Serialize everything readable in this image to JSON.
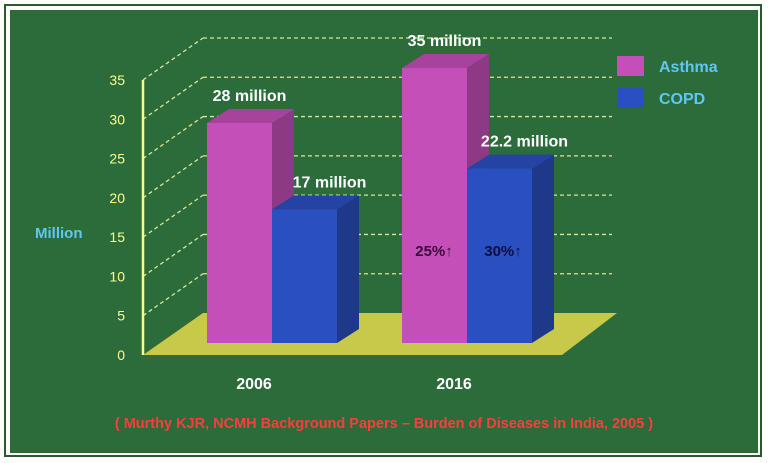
{
  "chart_data": {
    "type": "bar",
    "categories": [
      "2006",
      "2016"
    ],
    "series": [
      {
        "name": "Asthma",
        "values": [
          28,
          35
        ],
        "color": "#c44fb8",
        "data_labels": [
          "28 million",
          "35 million"
        ]
      },
      {
        "name": "COPD",
        "values": [
          17,
          22.2
        ],
        "color": "#2a4fc0",
        "data_labels": [
          "17 million",
          "22.2 million"
        ]
      }
    ],
    "ylabel": "Million",
    "ylim": [
      0,
      35
    ],
    "yticks": [
      0,
      5,
      10,
      15,
      20,
      25,
      30,
      35
    ],
    "grid": true,
    "legend": "top-right",
    "annotations": [
      {
        "category": "2016",
        "series": "Asthma",
        "text": "25%↑"
      },
      {
        "category": "2016",
        "series": "COPD",
        "text": "30%↑"
      }
    ],
    "source": "( Murthy KJR, NCMH Background Papers – Burden of Diseases in India, 2005 )",
    "colors": {
      "background": "#2c6b3a",
      "axis_text": "#ffffff",
      "tick_text": "#ffff88",
      "grid": "#d6e89a",
      "floor": "#c8c84a",
      "ylabel": "#5ec8f0",
      "legend_text": "#5ec8f0",
      "source_text": "#ff3b3b"
    }
  }
}
